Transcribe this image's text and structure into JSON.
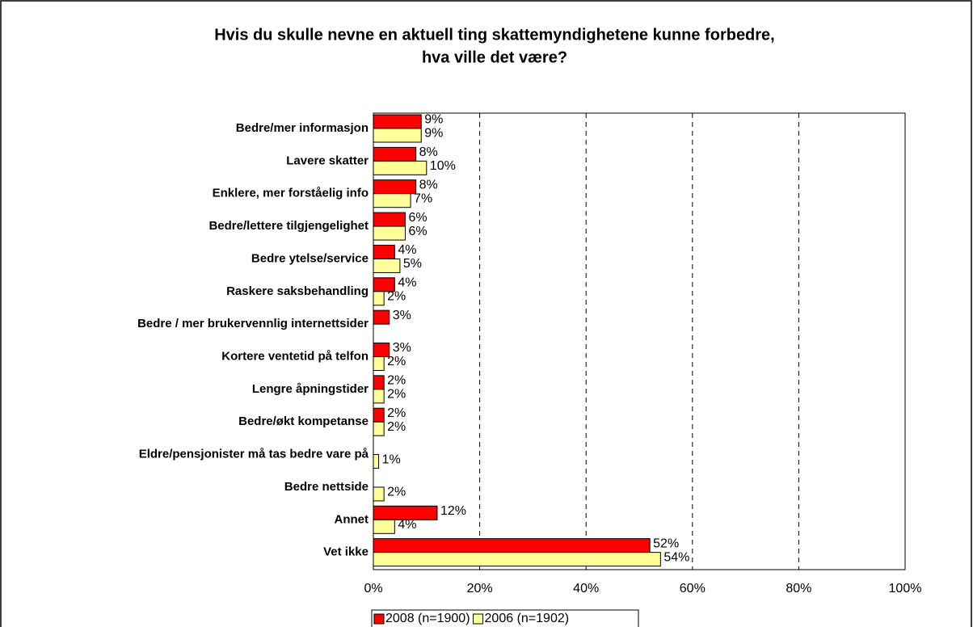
{
  "chart_data": {
    "type": "hbar",
    "title": [
      "Hvis du skulle nevne en aktuell ting skattemyndighetene kunne forbedre,",
      "hva ville det være?"
    ],
    "categories": [
      "Bedre/mer informasjon",
      "Lavere skatter",
      "Enklere, mer forståelig info",
      "Bedre/lettere tilgjengelighet",
      "Bedre ytelse/service",
      "Raskere saksbehandling",
      "Bedre /  mer brukervennlig internettsider",
      "Kortere ventetid på telfon",
      "Lengre åpningstider",
      "Bedre/økt kompetanse",
      "Eldre/pensjonister må tas bedre vare på",
      "Bedre nettside",
      "Annet",
      "Vet ikke"
    ],
    "series": [
      {
        "name": "2008 (n=1900)",
        "color": "#ff0000",
        "values": [
          9,
          8,
          8,
          6,
          4,
          4,
          3,
          3,
          2,
          2,
          null,
          null,
          12,
          52
        ],
        "value_labels": [
          "9%",
          "8%",
          "8%",
          "6%",
          "4%",
          "4%",
          "3%",
          "3%",
          "2%",
          "2%",
          null,
          null,
          "12%",
          "52%"
        ]
      },
      {
        "name": "2006 (n=1902)",
        "color": "#ffff99",
        "values": [
          9,
          10,
          7,
          6,
          5,
          2,
          null,
          2,
          2,
          2,
          1,
          2,
          4,
          54
        ],
        "value_labels": [
          "9%",
          "10%",
          "7%",
          "6%",
          "5%",
          "2%",
          null,
          "2%",
          "2%",
          "2%",
          "1%",
          "2%",
          "4%",
          "54%"
        ]
      }
    ],
    "xlim": [
      0,
      100
    ],
    "xticks": [
      {
        "value": 0,
        "label": "0%"
      },
      {
        "value": 20,
        "label": "20%"
      },
      {
        "value": 40,
        "label": "40%"
      },
      {
        "value": 60,
        "label": "60%"
      },
      {
        "value": 80,
        "label": "80%"
      },
      {
        "value": 100,
        "label": "100%"
      }
    ],
    "grid": true,
    "legend": "bottom"
  }
}
